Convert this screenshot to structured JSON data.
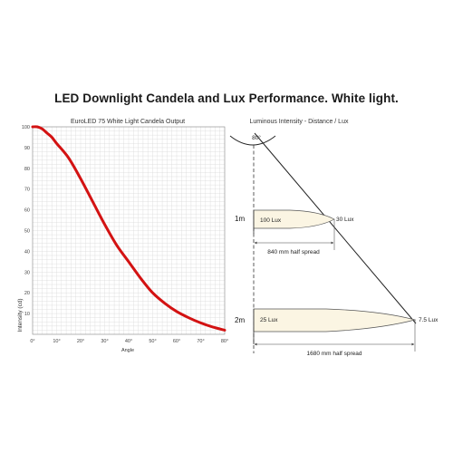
{
  "title": "LED Downlight Candela and Lux Performance. White light.",
  "colors": {
    "curve": "#d31212",
    "grid": "#d9d9d9",
    "beam_fill": "#fbf5e3",
    "beam_stroke": "#555555"
  },
  "chart_data": {
    "type": "line",
    "title": "EuroLED 75 White Light Candela Output",
    "xlabel": "Angle",
    "ylabel": "Intensity (cd)",
    "xlim": [
      0,
      80
    ],
    "ylim": [
      0,
      100
    ],
    "x_ticks": [
      "0°",
      "10°",
      "20°",
      "30°",
      "40°",
      "50°",
      "60°",
      "70°",
      "80°"
    ],
    "y_ticks": [
      "10",
      "20",
      "30",
      "40",
      "50",
      "60",
      "70",
      "80",
      "90",
      "100"
    ],
    "grid": true,
    "series": [
      {
        "x": [
          0,
          2,
          4,
          6,
          8,
          10,
          15,
          20,
          25,
          30,
          35,
          40,
          45,
          50,
          55,
          60,
          65,
          70,
          75,
          80
        ],
        "values": [
          100,
          100,
          99,
          97,
          95,
          92,
          85,
          75,
          64,
          53,
          43,
          35,
          27,
          20,
          15,
          11,
          8,
          5.5,
          3.5,
          2
        ]
      }
    ]
  },
  "diagram": {
    "title": "Luminous Intensity - Distance / Lux",
    "angle_label": "80°",
    "rows": [
      {
        "distance": "1m",
        "center_lux": "100 Lux",
        "edge_lux": "30 Lux",
        "spread": "840 mm half spread"
      },
      {
        "distance": "2m",
        "center_lux": "25 Lux",
        "edge_lux": "7.5 Lux",
        "spread": "1680 mm half spread"
      }
    ]
  }
}
